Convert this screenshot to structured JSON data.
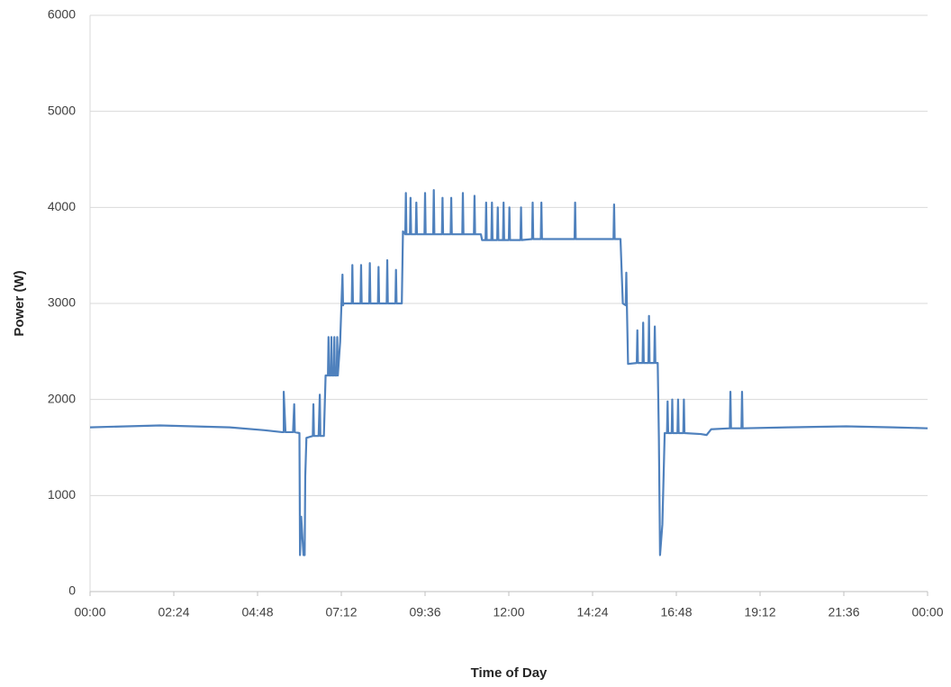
{
  "chart_data": {
    "type": "line",
    "x_label": "Time of Day",
    "y_label": "Power (W)",
    "color": "#4f81bd",
    "grid": true,
    "xlim": [
      0,
      1440
    ],
    "xticks": [
      {
        "value": 0,
        "label": "00:00"
      },
      {
        "value": 144,
        "label": "02:24"
      },
      {
        "value": 288,
        "label": "04:48"
      },
      {
        "value": 432,
        "label": "07:12"
      },
      {
        "value": 576,
        "label": "09:36"
      },
      {
        "value": 720,
        "label": "12:00"
      },
      {
        "value": 864,
        "label": "14:24"
      },
      {
        "value": 1008,
        "label": "16:48"
      },
      {
        "value": 1152,
        "label": "19:12"
      },
      {
        "value": 1296,
        "label": "21:36"
      },
      {
        "value": 1440,
        "label": "00:00"
      }
    ],
    "ylim": [
      0,
      6000
    ],
    "yticks": [
      0,
      1000,
      2000,
      3000,
      4000,
      5000,
      6000
    ],
    "x": [
      0,
      120,
      240,
      300,
      330,
      333,
      333,
      336,
      349,
      351,
      352,
      360,
      361,
      363,
      367,
      369,
      370,
      372,
      383,
      384,
      385,
      393,
      395,
      396,
      402,
      405,
      406,
      409,
      410,
      411,
      414,
      415,
      416,
      419,
      420,
      421,
      424,
      425,
      426,
      430,
      432,
      434,
      435,
      436,
      440,
      450,
      451,
      452,
      465,
      466,
      467,
      480,
      481,
      482,
      495,
      496,
      497,
      510,
      511,
      512,
      525,
      526,
      527,
      536,
      538,
      542,
      543,
      544,
      550,
      551,
      552,
      560,
      561,
      562,
      575,
      576,
      577,
      590,
      591,
      592,
      605,
      606,
      607,
      620,
      621,
      622,
      640,
      641,
      642,
      660,
      661,
      662,
      672,
      674,
      680,
      681,
      682,
      690,
      691,
      692,
      700,
      701,
      702,
      710,
      711,
      712,
      720,
      721,
      722,
      740,
      741,
      742,
      760,
      761,
      762,
      775,
      776,
      777,
      833,
      834,
      835,
      900,
      901,
      902,
      912,
      916,
      921,
      922,
      923,
      925,
      940,
      941,
      942,
      950,
      951,
      952,
      960,
      961,
      962,
      970,
      971,
      972,
      976,
      978,
      980,
      984,
      988,
      992,
      993,
      994,
      1000,
      1001,
      1002,
      1010,
      1011,
      1012,
      1020,
      1021,
      1022,
      1050,
      1060,
      1068,
      1100,
      1101,
      1102,
      1120,
      1121,
      1122,
      1200,
      1300,
      1380,
      1440
    ],
    "values": [
      1710,
      1730,
      1710,
      1680,
      1660,
      1660,
      2080,
      1660,
      1660,
      1950,
      1660,
      1650,
      380,
      780,
      380,
      380,
      1200,
      1600,
      1620,
      1950,
      1620,
      1620,
      2050,
      1620,
      1620,
      2250,
      2250,
      2250,
      2650,
      2250,
      2250,
      2650,
      2250,
      2250,
      2650,
      2250,
      2250,
      2650,
      2250,
      2600,
      2950,
      3300,
      2980,
      3000,
      3000,
      3000,
      3400,
      3000,
      3000,
      3400,
      3000,
      3000,
      3420,
      3000,
      3000,
      3380,
      3000,
      3000,
      3450,
      3000,
      3000,
      3350,
      3000,
      3000,
      3750,
      3720,
      4150,
      3720,
      3720,
      4100,
      3720,
      3720,
      4050,
      3720,
      3720,
      4150,
      3720,
      3720,
      4180,
      3720,
      3720,
      4100,
      3720,
      3720,
      4100,
      3720,
      3720,
      4150,
      3720,
      3720,
      4120,
      3720,
      3720,
      3660,
      3660,
      4050,
      3660,
      3660,
      4050,
      3660,
      3660,
      4000,
      3660,
      3660,
      4050,
      3660,
      3660,
      4000,
      3660,
      3660,
      4000,
      3660,
      3670,
      4050,
      3670,
      3670,
      4050,
      3670,
      3670,
      4050,
      3670,
      3670,
      4030,
      3670,
      3670,
      3000,
      2980,
      3320,
      2980,
      2370,
      2380,
      2720,
      2380,
      2380,
      2800,
      2380,
      2380,
      2870,
      2380,
      2380,
      2760,
      2380,
      2380,
      1600,
      380,
      700,
      1650,
      1650,
      1980,
      1650,
      1650,
      2000,
      1650,
      1650,
      2000,
      1650,
      1650,
      2000,
      1650,
      1640,
      1630,
      1690,
      1700,
      2080,
      1700,
      1700,
      2080,
      1700,
      1710,
      1720,
      1710,
      1700
    ]
  }
}
